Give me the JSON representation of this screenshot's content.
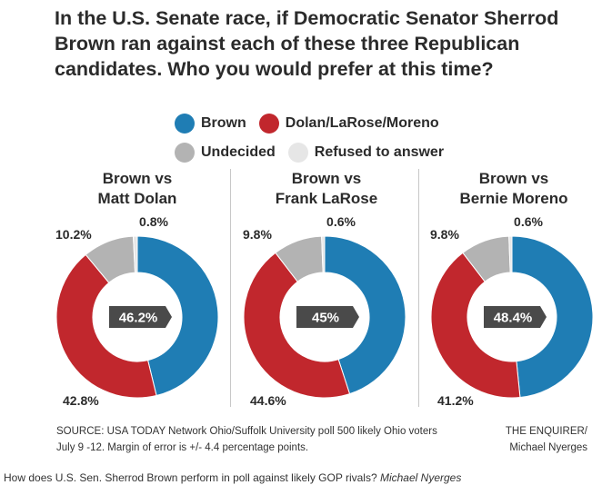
{
  "title": "In the U.S. Senate race, if Democratic Senator Sherrod Brown ran against each of these three Republican candidates. Who you would prefer at this time?",
  "legend": [
    {
      "label": "Brown",
      "color": "#1f7db4"
    },
    {
      "label": "Dolan/LaRose/Moreno",
      "color": "#c1272d"
    },
    {
      "label": "Undecided",
      "color": "#b3b3b3"
    },
    {
      "label": "Refused to answer",
      "color": "#e6e6e6"
    }
  ],
  "chart_data": [
    {
      "type": "pie",
      "title_line1": "Brown vs",
      "title_line2": "Matt Dolan",
      "categories": [
        "Brown",
        "Dolan/LaRose/Moreno",
        "Undecided",
        "Refused to answer"
      ],
      "values": [
        46.2,
        42.8,
        10.2,
        0.8
      ],
      "labels": [
        "46.2%",
        "42.8%",
        "10.2%",
        "0.8%"
      ],
      "center_label": "46.2%"
    },
    {
      "type": "pie",
      "title_line1": "Brown vs",
      "title_line2": "Frank LaRose",
      "categories": [
        "Brown",
        "Dolan/LaRose/Moreno",
        "Undecided",
        "Refused to answer"
      ],
      "values": [
        45,
        44.6,
        9.8,
        0.6
      ],
      "labels": [
        "45%",
        "44.6%",
        "9.8%",
        "0.6%"
      ],
      "center_label": "45%"
    },
    {
      "type": "pie",
      "title_line1": "Brown vs",
      "title_line2": "Bernie Moreno",
      "categories": [
        "Brown",
        "Dolan/LaRose/Moreno",
        "Undecided",
        "Refused to answer"
      ],
      "values": [
        48.4,
        41.2,
        9.8,
        0.6
      ],
      "labels": [
        "48.4%",
        "41.2%",
        "9.8%",
        "0.6%"
      ],
      "center_label": "48.4%"
    }
  ],
  "source": "SOURCE: USA TODAY Network Ohio/Suffolk University poll 500 likely Ohio voters July 9 -12. Margin of error is +/- 4.4 percentage points.",
  "credit_line1": "THE ENQUIRER/",
  "credit_line2": "Michael Nyerges",
  "caption": {
    "text": "How does U.S. Sen. Sherrod Brown perform in poll against likely GOP rivals?",
    "credit": "Michael Nyerges"
  }
}
